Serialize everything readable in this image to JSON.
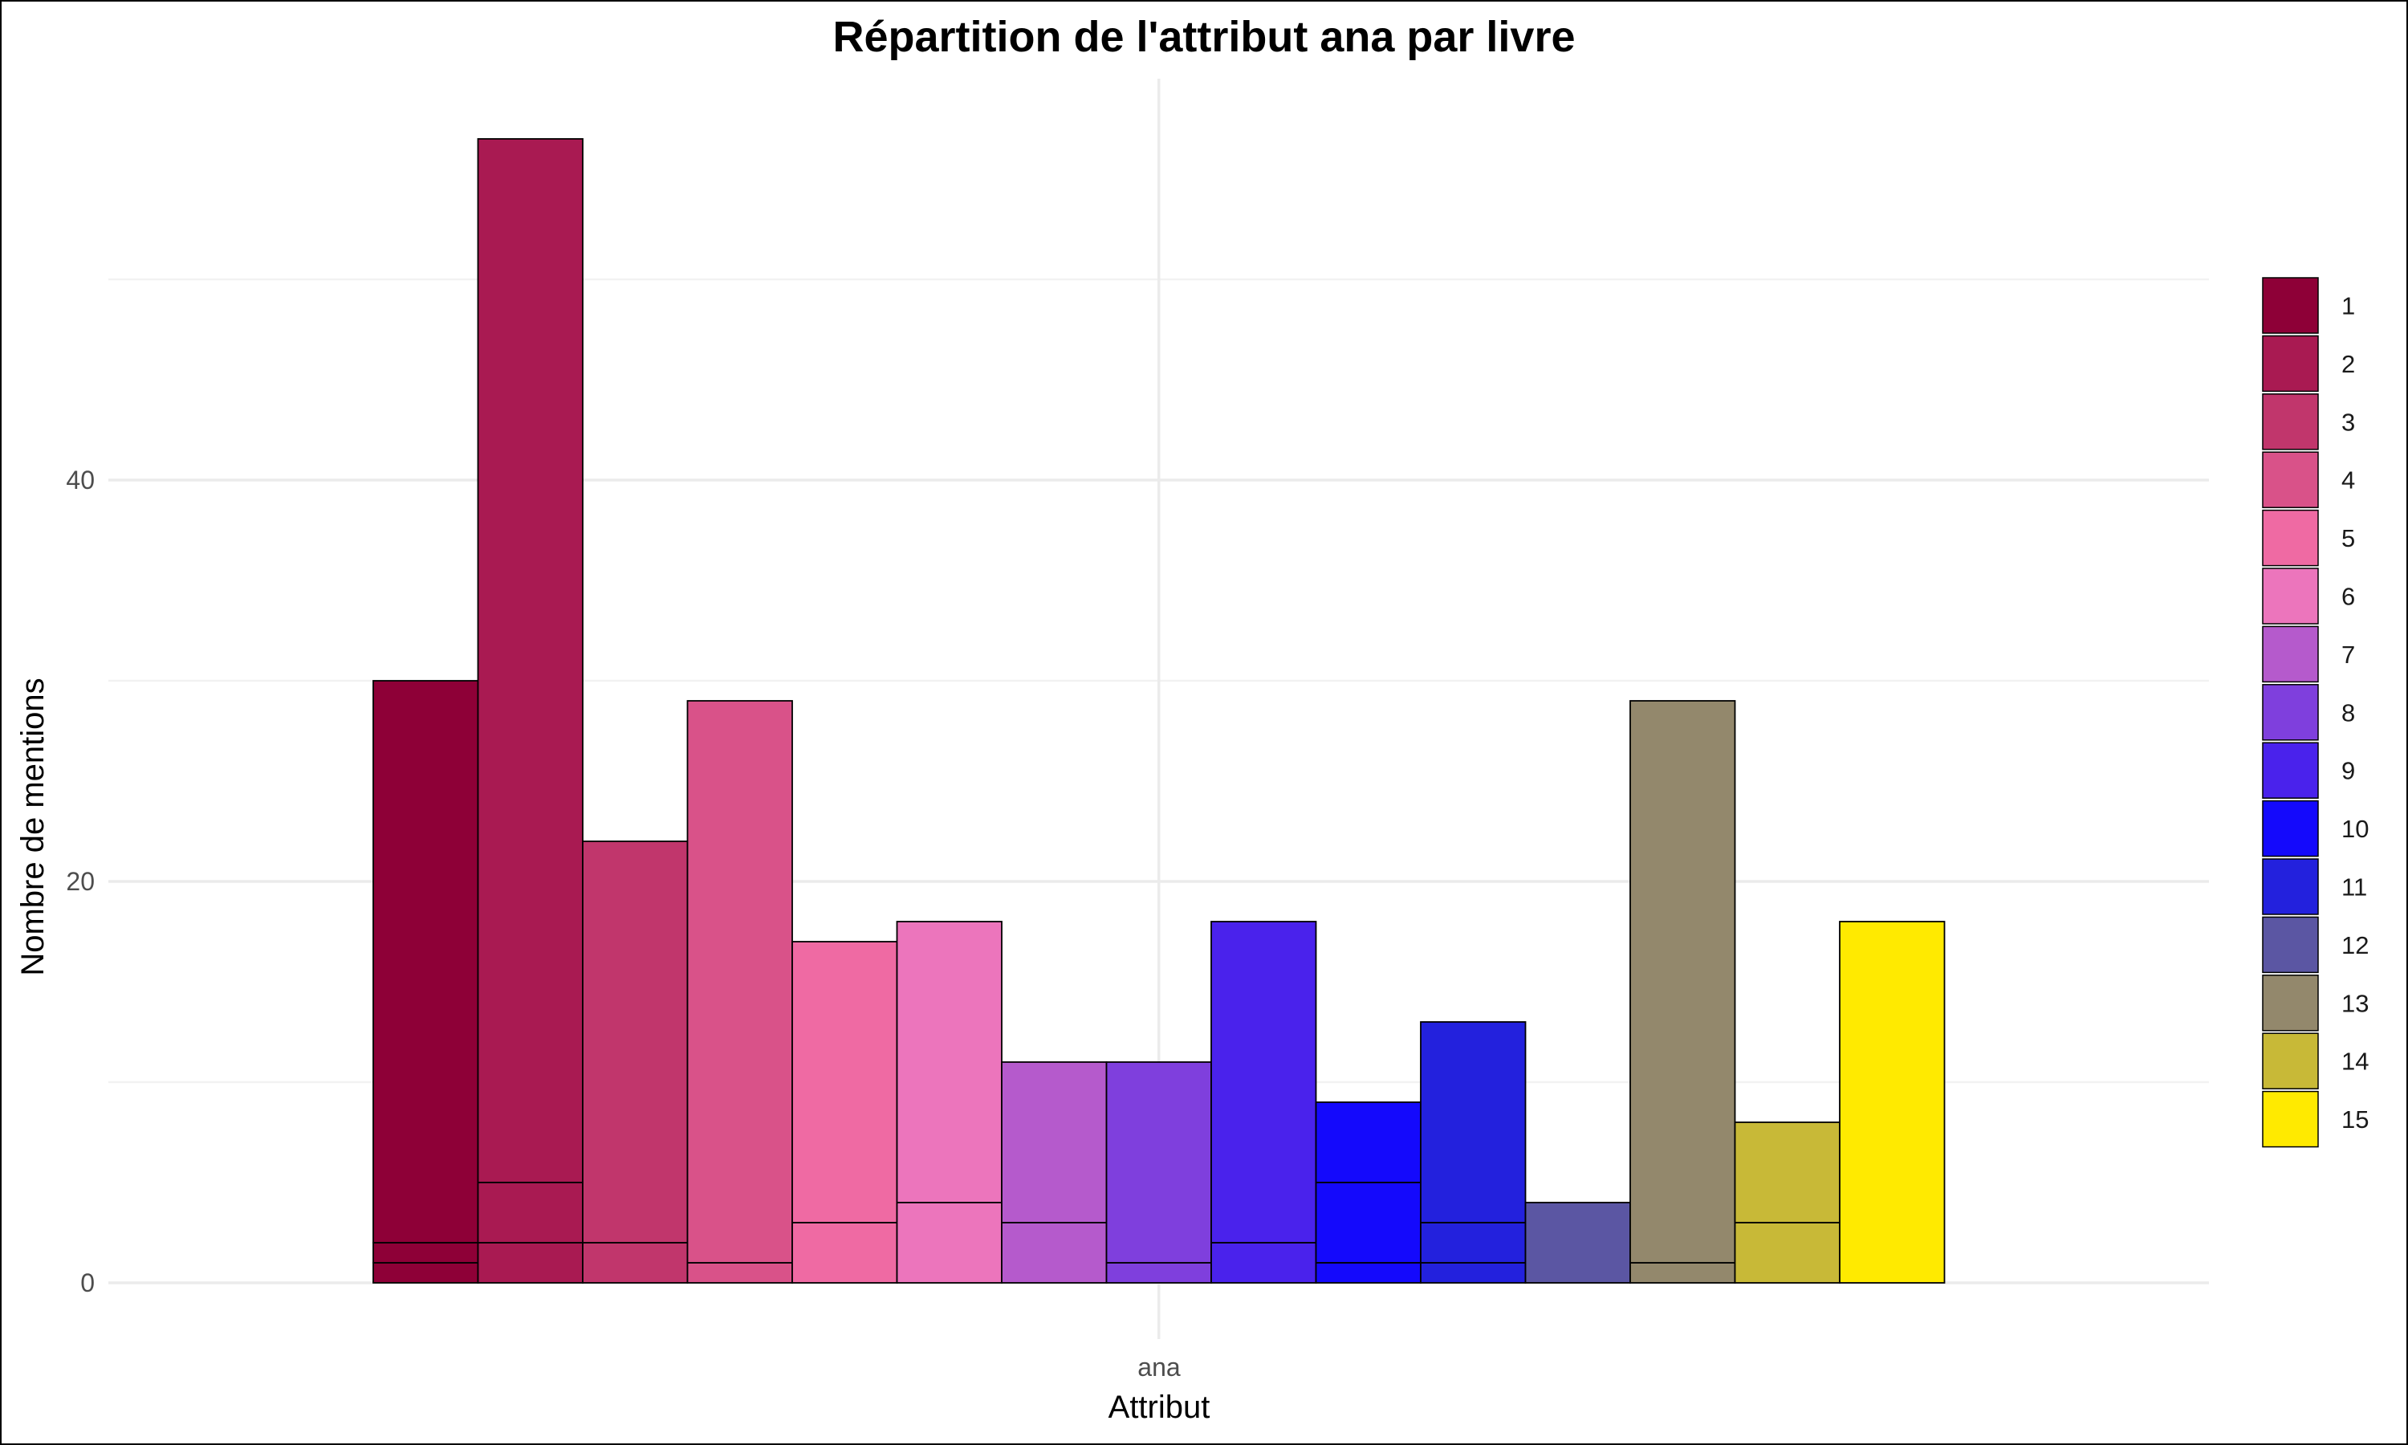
{
  "chart_data": {
    "type": "bar",
    "title": "Répartition de l'attribut ana par livre",
    "xlabel": "Attribut",
    "ylabel": "Nombre de mentions",
    "categories": [
      "ana"
    ],
    "ylim": [
      0,
      57
    ],
    "y_ticks": [
      "0",
      "20",
      "40"
    ],
    "grid": true,
    "legend_position": "right",
    "legend": [
      "1",
      "2",
      "3",
      "4",
      "5",
      "6",
      "7",
      "8",
      "9",
      "10",
      "11",
      "12",
      "13",
      "14",
      "15"
    ],
    "series": [
      {
        "name": "1",
        "color": "#8E0037",
        "segments": [
          1,
          1,
          28
        ]
      },
      {
        "name": "2",
        "color": "#A91A52",
        "segments": [
          2,
          3,
          52
        ]
      },
      {
        "name": "3",
        "color": "#C1366C",
        "segments": [
          2,
          20
        ]
      },
      {
        "name": "4",
        "color": "#D95289",
        "segments": [
          1,
          28
        ]
      },
      {
        "name": "5",
        "color": "#EF6AA3",
        "segments": [
          3,
          14
        ]
      },
      {
        "name": "6",
        "color": "#EC75BC",
        "segments": [
          4,
          14
        ]
      },
      {
        "name": "7",
        "color": "#B55ACC",
        "segments": [
          3,
          8
        ]
      },
      {
        "name": "8",
        "color": "#7F3FDD",
        "segments": [
          1,
          10
        ]
      },
      {
        "name": "9",
        "color": "#4A22EC",
        "segments": [
          2,
          16
        ]
      },
      {
        "name": "10",
        "color": "#1409FC",
        "segments": [
          1,
          4,
          4
        ]
      },
      {
        "name": "11",
        "color": "#2321DD",
        "segments": [
          1,
          2,
          10
        ]
      },
      {
        "name": "12",
        "color": "#5B56A3",
        "segments": [
          4
        ]
      },
      {
        "name": "13",
        "color": "#93886C",
        "segments": [
          1,
          28
        ]
      },
      {
        "name": "14",
        "color": "#C8B937",
        "segments": [
          3,
          5
        ]
      },
      {
        "name": "15",
        "color": "#FFEA00",
        "segments": [
          18
        ]
      }
    ]
  }
}
